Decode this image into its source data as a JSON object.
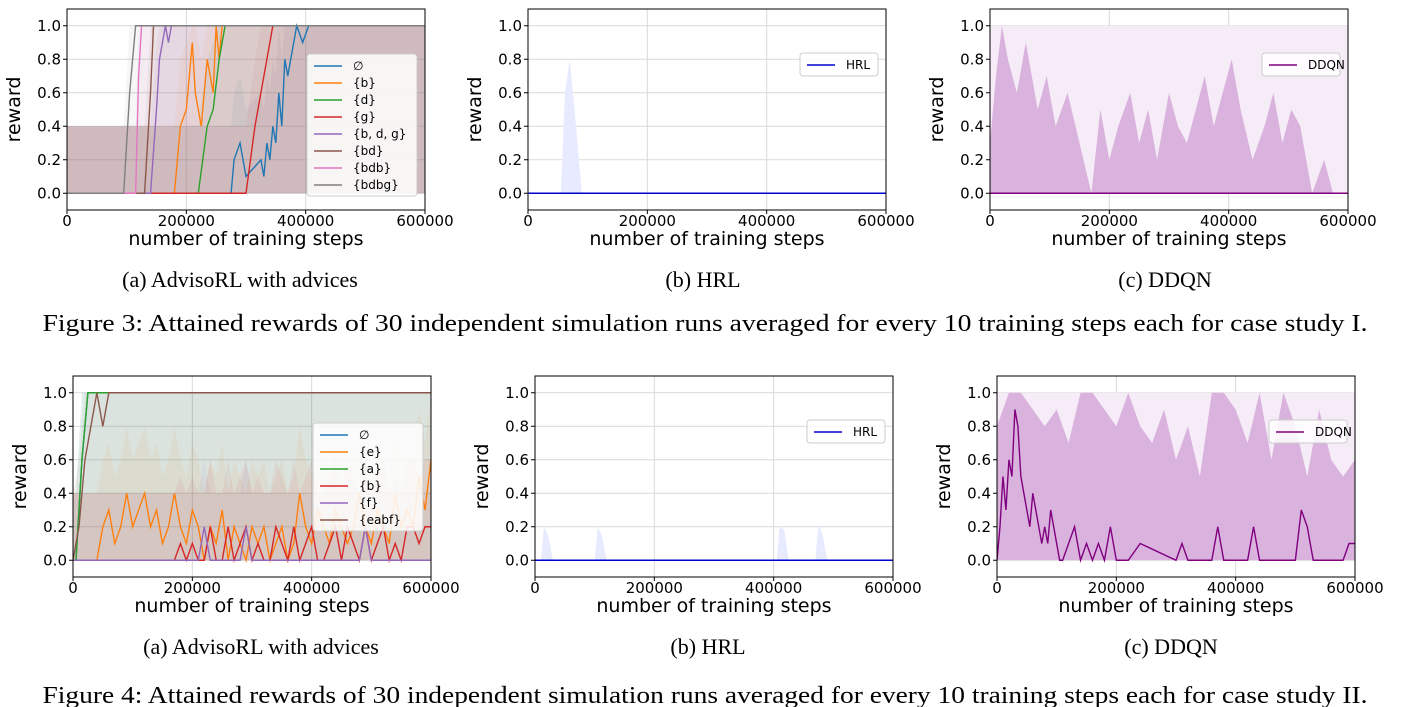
{
  "figures": [
    {
      "caption": "Figure 3: Attained rewards of 30 independent simulation runs averaged for every 10 training steps each for case study I.",
      "panels": [
        {
          "subcaption": "(a) AdvisoRL with advices"
        },
        {
          "subcaption": "(b) HRL"
        },
        {
          "subcaption": "(c) DDQN"
        }
      ]
    },
    {
      "caption": "Figure 4: Attained rewards of 30 independent simulation runs averaged for every 10 training steps each for case study II.",
      "panels": [
        {
          "subcaption": "(a) AdvisoRL with advices"
        },
        {
          "subcaption": "(b) HRL"
        },
        {
          "subcaption": "(c) DDQN"
        }
      ]
    }
  ],
  "chart_data": [
    {
      "type": "line",
      "xlabel": "number of training steps",
      "ylabel": "reward",
      "xlim": [
        0,
        600000
      ],
      "ylim": [
        -0.1,
        1.1
      ],
      "xticks": [
        "0",
        "200000",
        "400000",
        "600000"
      ],
      "yticks": [
        "0.0",
        "0.2",
        "0.4",
        "0.6",
        "0.8",
        "1.0"
      ],
      "grid": true,
      "legend_position": "right",
      "series": [
        {
          "name": "∅",
          "color": "#1f77b4",
          "x": [
            0,
            275000,
            280000,
            290000,
            300000,
            325000,
            330000,
            335000,
            340000,
            345000,
            350000,
            355000,
            360000,
            365000,
            370000,
            380000,
            385000,
            395000,
            405000,
            415000,
            420000,
            600000
          ],
          "y": [
            0,
            0,
            0.2,
            0.3,
            0.1,
            0.2,
            0.1,
            0.3,
            0.2,
            0.4,
            0.3,
            0.6,
            0.4,
            0.8,
            0.7,
            0.9,
            1.0,
            0.9,
            1.0,
            1.0,
            1.0,
            1.0
          ]
        },
        {
          "name": "{b}",
          "color": "#ff7f0e",
          "x": [
            0,
            180000,
            190000,
            200000,
            210000,
            215000,
            225000,
            235000,
            245000,
            250000,
            255000,
            260000,
            270000,
            280000,
            600000
          ],
          "y": [
            0,
            0,
            0.4,
            0.5,
            0.9,
            0.6,
            0.4,
            0.8,
            0.6,
            1.0,
            0.8,
            1.0,
            1.0,
            1.0,
            1.0
          ]
        },
        {
          "name": "{d}",
          "color": "#2ca02c",
          "x": [
            0,
            220000,
            235000,
            245000,
            255000,
            265000,
            600000
          ],
          "y": [
            0,
            0,
            0.4,
            0.5,
            0.8,
            1.0,
            1.0
          ]
        },
        {
          "name": "{g}",
          "color": "#d62728",
          "x": [
            0,
            300000,
            315000,
            325000,
            335000,
            340000,
            345000,
            355000,
            600000
          ],
          "y": [
            0,
            0,
            0.4,
            0.6,
            0.8,
            0.9,
            1.0,
            1.0,
            1.0
          ]
        },
        {
          "name": "{b, d, g}",
          "color": "#9467bd",
          "x": [
            0,
            140000,
            150000,
            155000,
            165000,
            170000,
            175000,
            185000,
            200000,
            230000,
            600000
          ],
          "y": [
            0,
            0,
            0.5,
            0.8,
            1.0,
            0.9,
            1.0,
            1.0,
            1.0,
            1.0,
            1.0
          ]
        },
        {
          "name": "{bd}",
          "color": "#8c564b",
          "x": [
            0,
            130000,
            140000,
            145000,
            155000,
            600000
          ],
          "y": [
            0,
            0,
            0.6,
            1.0,
            1.0,
            1.0
          ]
        },
        {
          "name": "{bdb}",
          "color": "#e377c2",
          "x": [
            0,
            115000,
            120000,
            125000,
            130000,
            600000
          ],
          "y": [
            0,
            0,
            0.7,
            1.0,
            1.0,
            1.0
          ]
        },
        {
          "name": "{bdbg}",
          "color": "#7f7f7f",
          "x": [
            0,
            95000,
            105000,
            115000,
            600000
          ],
          "y": [
            0,
            0,
            0.6,
            1.0,
            1.0
          ]
        }
      ]
    },
    {
      "type": "line",
      "xlabel": "number of training steps",
      "ylabel": "reward",
      "xlim": [
        0,
        600000
      ],
      "ylim": [
        -0.1,
        1.1
      ],
      "xticks": [
        "0",
        "200000",
        "400000",
        "600000"
      ],
      "yticks": [
        "0.0",
        "0.2",
        "0.4",
        "0.6",
        "0.8",
        "1.0"
      ],
      "grid": true,
      "legend_position": "upper right",
      "series": [
        {
          "name": "HRL",
          "color": "#0000cd",
          "x": [
            0,
            600000
          ],
          "y": [
            0,
            0
          ]
        }
      ],
      "band": {
        "color": "#e8eaff",
        "x": [
          55000,
          62000,
          70000,
          78000,
          90000
        ],
        "ymax": [
          0,
          0.6,
          0.8,
          0.5,
          0
        ]
      }
    },
    {
      "type": "line",
      "xlabel": "number of training steps",
      "ylabel": "reward",
      "xlim": [
        0,
        600000
      ],
      "ylim": [
        -0.1,
        1.1
      ],
      "xticks": [
        "0",
        "200000",
        "400000",
        "600000"
      ],
      "yticks": [
        "0.0",
        "0.2",
        "0.4",
        "0.6",
        "0.8",
        "1.0"
      ],
      "grid": true,
      "legend_position": "upper right",
      "series": [
        {
          "name": "DDQN",
          "color": "#800080",
          "x": [
            0,
            600000
          ],
          "y": [
            0,
            0
          ]
        }
      ],
      "band": {
        "color": "#d9b3dd",
        "x": [
          0,
          10000,
          20000,
          30000,
          45000,
          60000,
          80000,
          95000,
          110000,
          130000,
          150000,
          170000,
          185000,
          200000,
          215000,
          235000,
          250000,
          265000,
          280000,
          300000,
          315000,
          330000,
          345000,
          360000,
          375000,
          390000,
          405000,
          420000,
          440000,
          460000,
          475000,
          490000,
          505000,
          520000,
          540000,
          560000,
          575000,
          590000,
          600000
        ],
        "ymax": [
          0.3,
          0.7,
          1.0,
          0.8,
          0.6,
          0.9,
          0.5,
          0.7,
          0.4,
          0.6,
          0.3,
          0.0,
          0.5,
          0.2,
          0.4,
          0.6,
          0.3,
          0.5,
          0.2,
          0.6,
          0.4,
          0.3,
          0.5,
          0.7,
          0.4,
          0.6,
          0.8,
          0.5,
          0.2,
          0.4,
          0.6,
          0.3,
          0.5,
          0.4,
          0.0,
          0.2,
          0.0,
          0.0,
          0.0
        ]
      }
    },
    {
      "type": "line",
      "xlabel": "number of training steps",
      "ylabel": "reward",
      "xlim": [
        0,
        600000
      ],
      "ylim": [
        -0.1,
        1.1
      ],
      "xticks": [
        "0",
        "200000",
        "400000",
        "600000"
      ],
      "yticks": [
        "0.0",
        "0.2",
        "0.4",
        "0.6",
        "0.8",
        "1.0"
      ],
      "grid": true,
      "legend_position": "right",
      "series": [
        {
          "name": "∅",
          "color": "#1f77b4",
          "x": [
            0,
            5000,
            15000,
            25000,
            600000
          ],
          "y": [
            0,
            0,
            0.6,
            1.0,
            1.0
          ]
        },
        {
          "name": "{e}",
          "color": "#ff7f0e",
          "x": [
            0,
            40000,
            50000,
            60000,
            70000,
            80000,
            90000,
            100000,
            110000,
            120000,
            130000,
            140000,
            150000,
            160000,
            170000,
            180000,
            190000,
            200000,
            210000,
            220000,
            230000,
            240000,
            250000,
            260000,
            270000,
            280000,
            290000,
            300000,
            310000,
            320000,
            330000,
            340000,
            350000,
            360000,
            370000,
            380000,
            390000,
            400000,
            410000,
            420000,
            430000,
            440000,
            450000,
            460000,
            470000,
            480000,
            490000,
            500000,
            510000,
            520000,
            530000,
            540000,
            550000,
            560000,
            570000,
            580000,
            590000,
            600000
          ],
          "y": [
            0,
            0,
            0.2,
            0.3,
            0.1,
            0.2,
            0.4,
            0.2,
            0.3,
            0.4,
            0.2,
            0.3,
            0.1,
            0.2,
            0.4,
            0.2,
            0.1,
            0.3,
            0.2,
            0,
            0.2,
            0.1,
            0.3,
            0,
            0.2,
            0.1,
            0,
            0.2,
            0.1,
            0.2,
            0,
            0.1,
            0.2,
            0,
            0.1,
            0.4,
            0.2,
            0.1,
            0.3,
            0.2,
            0.1,
            0.3,
            0.2,
            0.1,
            0.2,
            0.4,
            0.2,
            0.1,
            0.3,
            0.2,
            0.1,
            0.4,
            0.2,
            0.3,
            0.2,
            0.5,
            0.3,
            0.6
          ]
        },
        {
          "name": "{a}",
          "color": "#2ca02c",
          "x": [
            0,
            5000,
            15000,
            25000,
            35000,
            600000
          ],
          "y": [
            0,
            0,
            0.6,
            1.0,
            1.0,
            1.0
          ]
        },
        {
          "name": "{b}",
          "color": "#d62728",
          "x": [
            0,
            170000,
            180000,
            190000,
            200000,
            210000,
            220000,
            230000,
            240000,
            250000,
            260000,
            270000,
            280000,
            290000,
            300000,
            310000,
            320000,
            330000,
            340000,
            350000,
            360000,
            370000,
            380000,
            390000,
            400000,
            410000,
            420000,
            430000,
            440000,
            450000,
            460000,
            470000,
            480000,
            490000,
            500000,
            510000,
            520000,
            530000,
            540000,
            550000,
            560000,
            570000,
            580000,
            590000,
            600000
          ],
          "y": [
            0,
            0,
            0.1,
            0,
            0.1,
            0,
            0,
            0.2,
            0,
            0,
            0.2,
            0,
            0.1,
            0.2,
            0,
            0.1,
            0,
            0,
            0.2,
            0.1,
            0,
            0.2,
            0,
            0.1,
            0.2,
            0,
            0,
            0.1,
            0.2,
            0,
            0.2,
            0.1,
            0,
            0.2,
            0,
            0.1,
            0.2,
            0,
            0.1,
            0,
            0.2,
            0.2,
            0.1,
            0.2,
            0.2
          ]
        },
        {
          "name": "{f}",
          "color": "#9467bd",
          "x": [
            0,
            210000,
            220000,
            230000,
            280000,
            290000,
            300000,
            480000,
            490000,
            500000,
            600000
          ],
          "y": [
            0,
            0,
            0.2,
            0,
            0,
            0.2,
            0,
            0,
            0.2,
            0,
            0
          ]
        },
        {
          "name": "{eabf}",
          "color": "#8c564b",
          "x": [
            0,
            10000,
            20000,
            30000,
            40000,
            50000,
            60000,
            70000,
            80000,
            600000
          ],
          "y": [
            0,
            0.2,
            0.6,
            0.8,
            1.0,
            0.8,
            1.0,
            1.0,
            1.0,
            1.0
          ]
        }
      ]
    },
    {
      "type": "line",
      "xlabel": "number of training steps",
      "ylabel": "reward",
      "xlim": [
        0,
        600000
      ],
      "ylim": [
        -0.1,
        1.1
      ],
      "xticks": [
        "0",
        "200000",
        "400000",
        "600000"
      ],
      "yticks": [
        "0.0",
        "0.2",
        "0.4",
        "0.6",
        "0.8",
        "1.0"
      ],
      "grid": true,
      "legend_position": "upper right",
      "series": [
        {
          "name": "HRL",
          "color": "#0000cd",
          "x": [
            0,
            600000
          ],
          "y": [
            0,
            0
          ]
        }
      ],
      "band": {
        "color": "#e8eaff",
        "x": [
          10000,
          15000,
          22000,
          30000,
          100000,
          105000,
          112000,
          120000,
          405000,
          410000,
          418000,
          425000,
          470000,
          475000,
          482000,
          490000
        ],
        "ymax": [
          0,
          0.2,
          0.15,
          0,
          0,
          0.2,
          0.15,
          0,
          0,
          0.2,
          0.18,
          0,
          0,
          0.22,
          0.15,
          0
        ]
      }
    },
    {
      "type": "line",
      "xlabel": "number of training steps",
      "ylabel": "reward",
      "xlim": [
        0,
        600000
      ],
      "ylim": [
        -0.1,
        1.1
      ],
      "xticks": [
        "0",
        "200000",
        "400000",
        "600000"
      ],
      "yticks": [
        "0.0",
        "0.2",
        "0.4",
        "0.6",
        "0.8",
        "1.0"
      ],
      "grid": true,
      "legend_position": "upper right",
      "series": [
        {
          "name": "DDQN",
          "color": "#800080",
          "x": [
            0,
            5000,
            10000,
            15000,
            20000,
            25000,
            30000,
            35000,
            40000,
            45000,
            50000,
            55000,
            60000,
            65000,
            70000,
            75000,
            80000,
            85000,
            90000,
            95000,
            100000,
            105000,
            110000,
            120000,
            130000,
            140000,
            150000,
            160000,
            170000,
            180000,
            190000,
            200000,
            220000,
            240000,
            300000,
            310000,
            320000,
            340000,
            360000,
            370000,
            380000,
            420000,
            430000,
            440000,
            500000,
            510000,
            520000,
            530000,
            540000,
            580000,
            590000,
            600000
          ],
          "y": [
            0,
            0.2,
            0.5,
            0.3,
            0.6,
            0.5,
            0.9,
            0.8,
            0.5,
            0.4,
            0.3,
            0.2,
            0.4,
            0.3,
            0.2,
            0.1,
            0.2,
            0.1,
            0.3,
            0.2,
            0.1,
            0,
            0,
            0.1,
            0.2,
            0,
            0.1,
            0,
            0.1,
            0,
            0.2,
            0,
            0,
            0.1,
            0,
            0.1,
            0,
            0,
            0,
            0.2,
            0,
            0,
            0.2,
            0,
            0,
            0.3,
            0.2,
            0,
            0,
            0,
            0.1,
            0.1
          ]
        }
      ],
      "band": {
        "color": "#d9b3dd",
        "x": [
          0,
          20000,
          40000,
          60000,
          80000,
          100000,
          120000,
          140000,
          160000,
          180000,
          200000,
          220000,
          240000,
          260000,
          280000,
          300000,
          320000,
          340000,
          360000,
          380000,
          400000,
          420000,
          440000,
          460000,
          480000,
          500000,
          520000,
          540000,
          560000,
          580000,
          600000
        ],
        "ymax": [
          0.8,
          1.0,
          1.0,
          0.9,
          0.8,
          0.9,
          0.7,
          1.0,
          1.0,
          0.9,
          0.8,
          1.0,
          0.8,
          0.7,
          0.9,
          0.6,
          0.8,
          0.5,
          1.0,
          1.0,
          0.9,
          0.7,
          1.0,
          0.6,
          1.0,
          0.8,
          0.5,
          0.9,
          0.6,
          0.5,
          0.6
        ]
      }
    }
  ]
}
